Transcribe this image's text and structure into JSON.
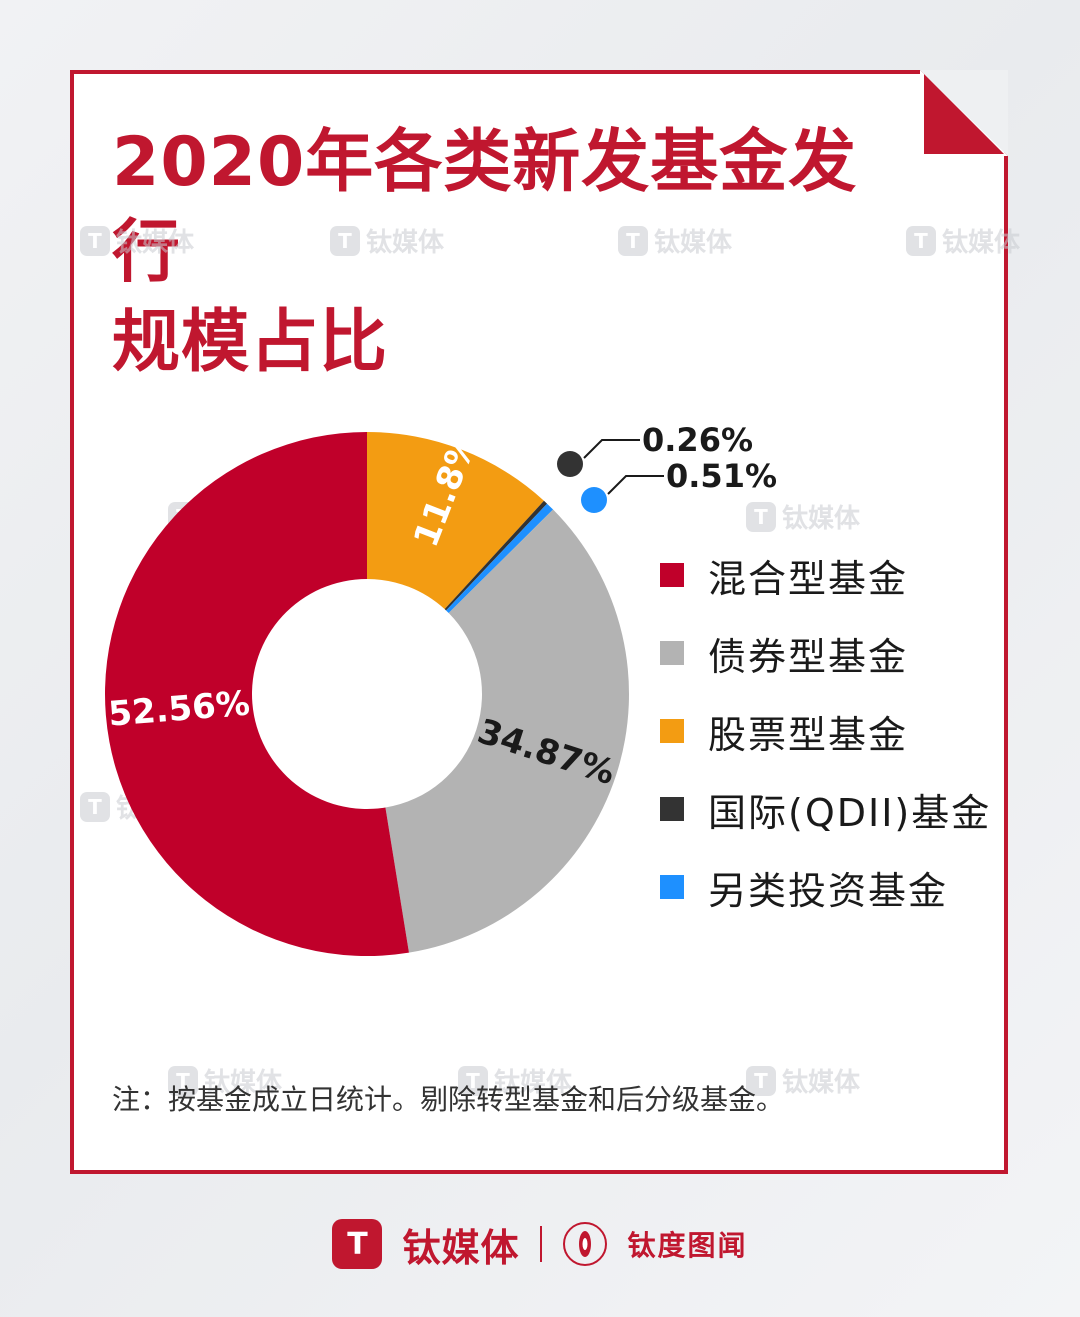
{
  "title_lines": [
    "2020年各类新发基金发行",
    "规模占比"
  ],
  "chart_data": {
    "type": "pie",
    "title": "2020年各类新发基金发行规模占比",
    "start_angle_deg": 0,
    "direction": "clockwise",
    "series": [
      {
        "name": "股票型基金",
        "value": 11.8,
        "label": "11.8%",
        "color": "#f39c12"
      },
      {
        "name": "国际(QDII)基金",
        "value": 0.26,
        "label": "0.26%",
        "color": "#333333"
      },
      {
        "name": "另类投资基金",
        "value": 0.51,
        "label": "0.51%",
        "color": "#1e90ff"
      },
      {
        "name": "债券型基金",
        "value": 34.87,
        "label": "34.87%",
        "color": "#b3b3b3"
      },
      {
        "name": "混合型基金",
        "value": 52.56,
        "label": "52.56%",
        "color": "#c0002a"
      }
    ],
    "legend": {
      "position": "right",
      "order": [
        "混合型基金",
        "债券型基金",
        "股票型基金",
        "国际(QDII)基金",
        "另类投资基金"
      ]
    }
  },
  "note": "注：按基金成立日统计。剔除转型基金和后分级基金。",
  "watermark_text": "钛媒体",
  "footer": {
    "brand": "钛媒体",
    "sub_brand": "钛度图闻",
    "logo_letter": "T"
  }
}
